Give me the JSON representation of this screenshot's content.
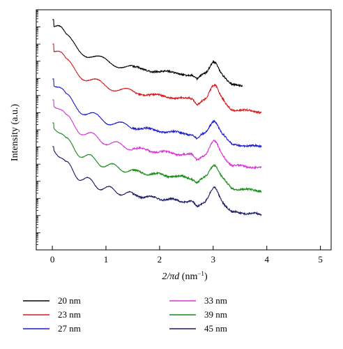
{
  "chart_data": {
    "type": "line",
    "xlabel_main": "2/πd",
    "xlabel_unit_prefix": " (nm",
    "xlabel_unit_exp": "−1",
    "xlabel_unit_suffix": ")",
    "ylabel": "Intensity (a.u.)",
    "xlim": [
      -0.3,
      5.2
    ],
    "xticks": [
      0,
      1,
      2,
      3,
      4,
      5
    ],
    "xtick_labels": [
      "0",
      "1",
      "2",
      "3",
      "4",
      "5"
    ],
    "y_scale": "log",
    "y_values_note": "",
    "legend_position": "bottom",
    "grid": false,
    "series": [
      {
        "name": "20 nm",
        "color": "#000000",
        "offset": 0,
        "x_end": 3.55,
        "fringe_d": 20
      },
      {
        "name": "23 nm",
        "color": "#d7191c",
        "offset": 1,
        "x_end": 3.9,
        "fringe_d": 23
      },
      {
        "name": "27 nm",
        "color": "#1a1acc",
        "offset": 2,
        "x_end": 3.9,
        "fringe_d": 27
      },
      {
        "name": "33 nm",
        "color": "#d633d6",
        "offset": 3,
        "x_end": 3.9,
        "fringe_d": 33
      },
      {
        "name": "39 nm",
        "color": "#1a8c1a",
        "offset": 4,
        "x_end": 3.9,
        "fringe_d": 39
      },
      {
        "name": "45 nm",
        "color": "#1a1a66",
        "offset": 5,
        "x_end": 3.9,
        "fringe_d": 45
      }
    ]
  }
}
